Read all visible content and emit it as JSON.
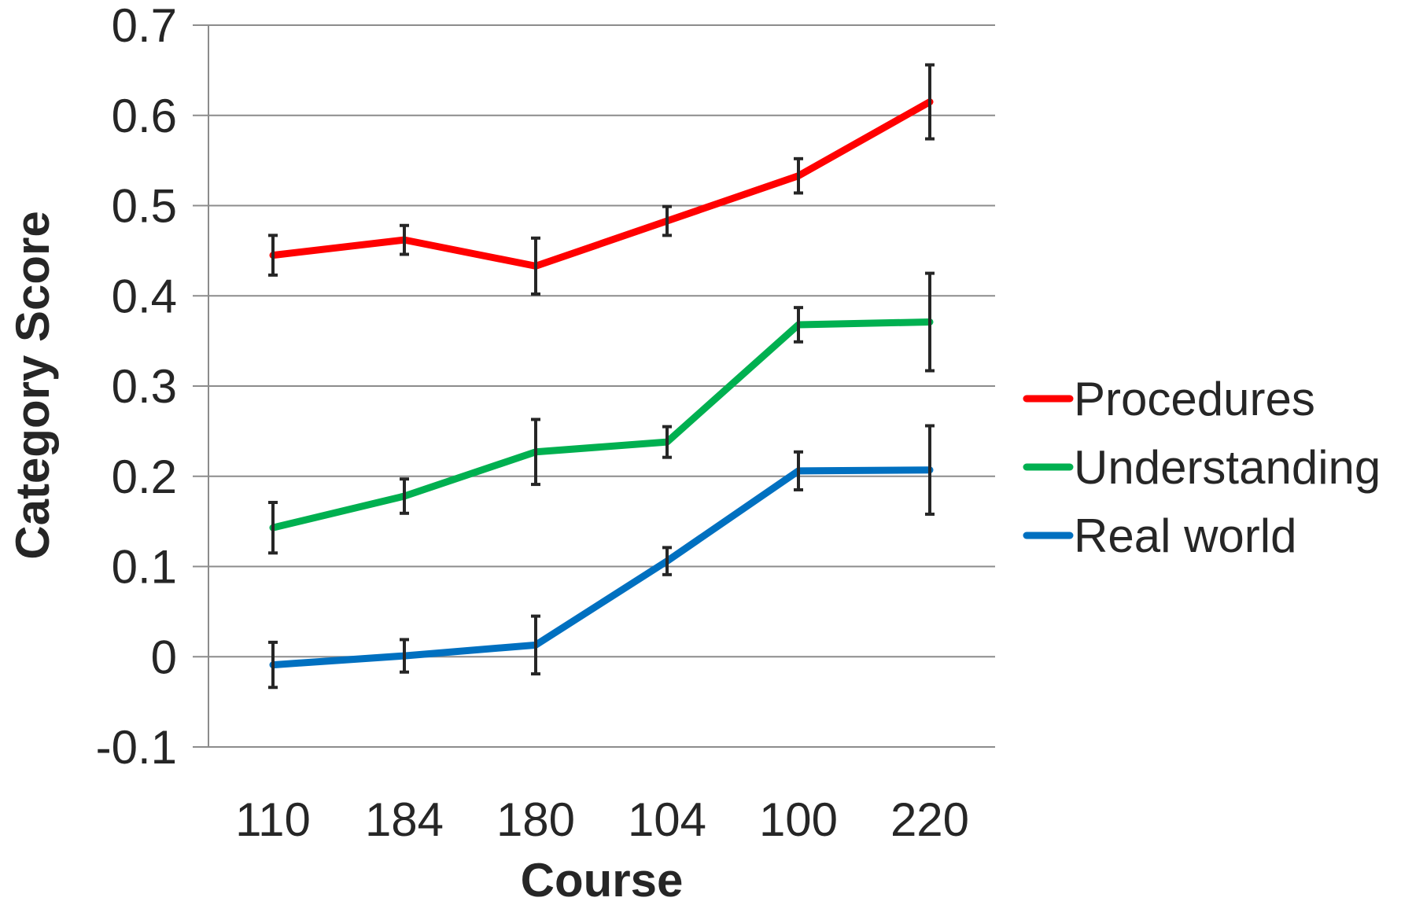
{
  "chart_data": {
    "type": "line",
    "title": "",
    "xlabel": "Course",
    "ylabel": "Category Score",
    "categories": [
      "110",
      "184",
      "180",
      "104",
      "100",
      "220"
    ],
    "ylim": [
      -0.1,
      0.7
    ],
    "yticks": [
      "-0.1",
      "0",
      "0.1",
      "0.2",
      "0.3",
      "0.4",
      "0.5",
      "0.6",
      "0.7"
    ],
    "grid": "horizontal",
    "legend_position": "right",
    "series": [
      {
        "name": "Procedures",
        "color": "#ff0000",
        "values": [
          0.445,
          0.462,
          0.433,
          0.483,
          0.533,
          0.615
        ],
        "errors": [
          0.022,
          0.016,
          0.031,
          0.016,
          0.019,
          0.041
        ]
      },
      {
        "name": "Understanding",
        "color": "#00b050",
        "values": [
          0.143,
          0.178,
          0.227,
          0.238,
          0.368,
          0.371
        ],
        "errors": [
          0.028,
          0.019,
          0.036,
          0.017,
          0.019,
          0.054
        ]
      },
      {
        "name": "Real world",
        "color": "#0070c0",
        "values": [
          -0.009,
          0.001,
          0.013,
          0.106,
          0.206,
          0.207
        ],
        "errors": [
          0.025,
          0.018,
          0.032,
          0.015,
          0.021,
          0.049
        ]
      }
    ]
  }
}
